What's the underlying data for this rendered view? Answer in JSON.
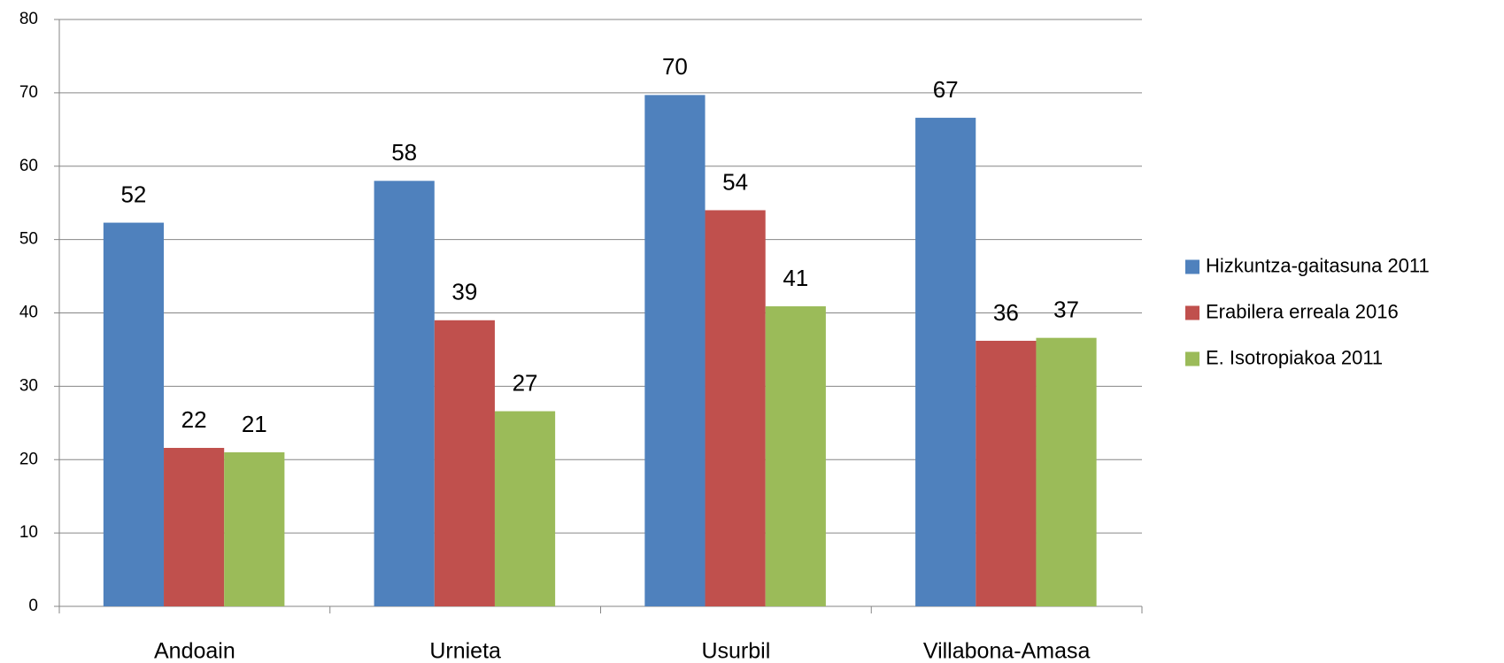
{
  "chart_data": {
    "type": "bar",
    "categories": [
      "Andoain",
      "Urnieta",
      "Usurbil",
      "Villabona-Amasa"
    ],
    "series": [
      {
        "name": "Hizkuntza-gaitasuna 2011",
        "color": "#4f81bd",
        "values": [
          52.3,
          58,
          69.7,
          66.6
        ],
        "value_labels": [
          "52",
          "58",
          "70",
          "67"
        ]
      },
      {
        "name": "Erabilera erreala 2016",
        "color": "#c0504d",
        "values": [
          21.6,
          39,
          54,
          36.2
        ],
        "value_labels": [
          "22",
          "39",
          "54",
          "36"
        ]
      },
      {
        "name": "E. Isotropiakoa 2011",
        "color": "#9bbb59",
        "values": [
          21,
          26.6,
          40.9,
          36.6
        ],
        "value_labels": [
          "21",
          "27",
          "41",
          "37"
        ]
      }
    ],
    "ylim": [
      0,
      80
    ],
    "yticks": [
      0,
      10,
      20,
      30,
      40,
      50,
      60,
      70,
      80
    ],
    "grid": true,
    "legend": "right"
  }
}
